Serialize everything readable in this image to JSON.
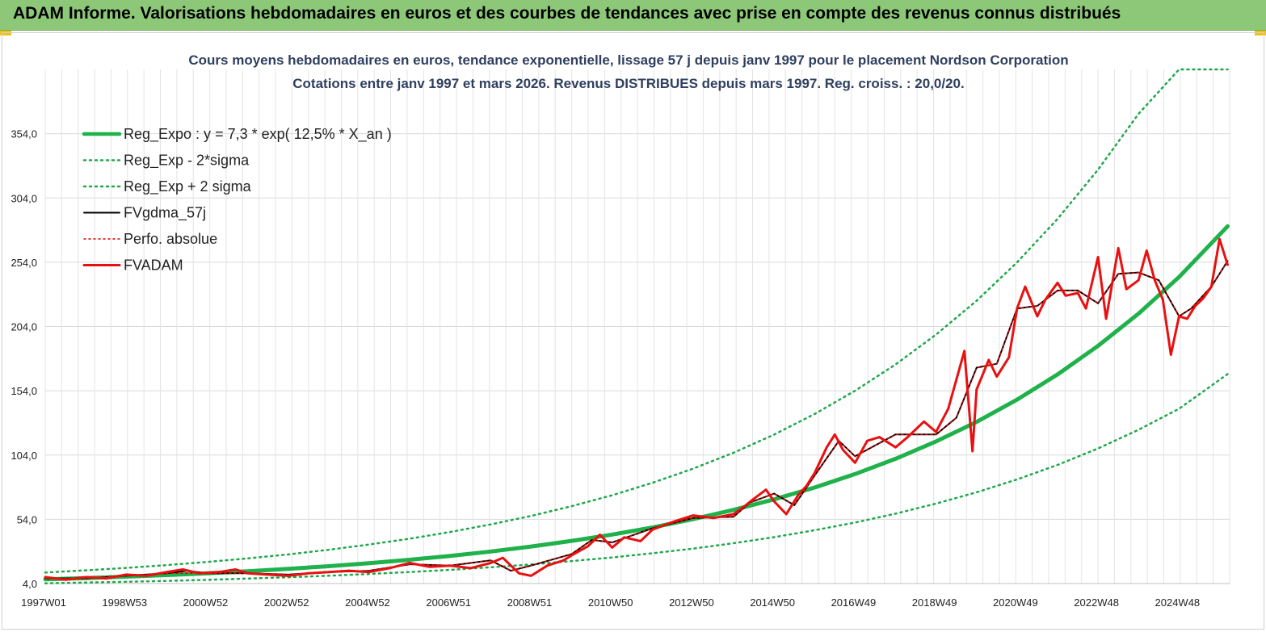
{
  "header": {
    "title": "ADAM Informe. Valorisations hebdomadaires en euros et des courbes de tendances avec prise en compte des revenus connus distribués"
  },
  "colors": {
    "banner": "#8cc878",
    "grid": "#d9d9d9",
    "reg_expo": "#1fb14a",
    "reg_band": "#1fa84a",
    "fvgdma": "#000000",
    "perfo": "#e00000",
    "fvadam": "#e81010"
  },
  "chart_data": {
    "type": "line",
    "title_line1": "Cours moyens hebdomadaires en euros, tendance exponentielle, lissage 57 j depuis janv 1997 pour le placement Nordson Corporation",
    "title_line2": "Cotations entre janv 1997 et mars 2026. Revenus DISTRIBUES depuis mars 1997. Reg. croiss. : 20,0/20.",
    "x_tick_labels": [
      "1997W01",
      "1998W53",
      "2000W52",
      "2002W52",
      "2004W52",
      "2006W51",
      "2008W51",
      "2010W50",
      "2012W50",
      "2014W50",
      "2016W49",
      "2018W49",
      "2020W49",
      "2022W48",
      "2024W48"
    ],
    "y_tick_labels": [
      "4,0",
      "54,0",
      "104,0",
      "154,0",
      "204,0",
      "254,0",
      "304,0",
      "354,0"
    ],
    "y_ticks": [
      4,
      54,
      104,
      154,
      204,
      254,
      304,
      354
    ],
    "ylim": [
      4,
      404
    ],
    "xlim": [
      1997.0,
      2026.25
    ],
    "grid": true,
    "legend_position": "top-left",
    "series": [
      {
        "name": "Reg_Expo : y = 7,3 * exp( 12,5% *  X_an )",
        "style": "solid-thick",
        "x": [
          1997,
          1998,
          1999,
          2000,
          2001,
          2002,
          2003,
          2004,
          2005,
          2006,
          2007,
          2008,
          2009,
          2010,
          2011,
          2012,
          2013,
          2014,
          2015,
          2016,
          2017,
          2018,
          2019,
          2020,
          2021,
          2022,
          2023,
          2024,
          2025,
          2026.2
        ],
        "values": [
          7.3,
          8.3,
          9.4,
          10.6,
          12.0,
          13.6,
          15.5,
          17.5,
          19.9,
          22.5,
          25.5,
          28.9,
          32.8,
          37.2,
          42.1,
          47.7,
          54.1,
          61.3,
          69.5,
          78.7,
          89.2,
          101.1,
          114.6,
          129.8,
          147.1,
          166.7,
          188.9,
          214.0,
          242.5,
          282.0
        ]
      },
      {
        "name": "Reg_Exp - 2*sigma",
        "style": "dotted",
        "x": [
          1997,
          1998,
          1999,
          2000,
          2001,
          2002,
          2003,
          2004,
          2005,
          2006,
          2007,
          2008,
          2009,
          2010,
          2011,
          2012,
          2013,
          2014,
          2015,
          2016,
          2017,
          2018,
          2019,
          2020,
          2021,
          2022,
          2023,
          2024,
          2025,
          2026.2
        ],
        "values": [
          4.2,
          4.8,
          5.4,
          6.1,
          6.9,
          7.9,
          8.9,
          10.1,
          11.5,
          13.0,
          14.7,
          16.7,
          18.9,
          21.5,
          24.3,
          27.6,
          31.2,
          35.4,
          40.1,
          45.5,
          51.5,
          58.4,
          66.2,
          75.0,
          85.0,
          96.3,
          109.1,
          123.6,
          140.0,
          167.0
        ]
      },
      {
        "name": "Reg_Exp + 2 sigma",
        "style": "dotted",
        "x": [
          1997,
          1998,
          1999,
          2000,
          2001,
          2002,
          2003,
          2004,
          2005,
          2006,
          2007,
          2008,
          2009,
          2010,
          2011,
          2012,
          2013,
          2014,
          2015,
          2016,
          2017,
          2018,
          2019,
          2020,
          2021,
          2022,
          2023,
          2024,
          2025,
          2026.2
        ],
        "values": [
          12.6,
          14.3,
          16.2,
          18.4,
          20.8,
          23.6,
          26.7,
          30.3,
          34.4,
          38.9,
          44.1,
          50.0,
          56.6,
          64.2,
          72.7,
          82.4,
          93.4,
          105.8,
          119.9,
          135.9,
          154.0,
          174.5,
          197.7,
          224.0,
          253.9,
          287.7,
          326.0,
          369.4,
          404,
          404
        ]
      },
      {
        "name": "FVgdma_57j",
        "style": "solid-thin",
        "x": [
          1997,
          1998,
          1999,
          2000,
          2000.5,
          2001,
          2002,
          2003,
          2004,
          2005,
          2006,
          2007,
          2008,
          2008.5,
          2009,
          2010,
          2010.5,
          2011,
          2012,
          2013,
          2014,
          2014.4,
          2015,
          2015.5,
          2016,
          2016.6,
          2017,
          2018,
          2019,
          2019.5,
          2020,
          2020.5,
          2021,
          2021.5,
          2022,
          2022.5,
          2023,
          2023.5,
          2024,
          2024.5,
          2025,
          2025.3,
          2025.8,
          2026.2
        ],
        "values": [
          8,
          8,
          10,
          12,
          14,
          12,
          12,
          11,
          13,
          14,
          19,
          18,
          22,
          14,
          18,
          27,
          38,
          36,
          47,
          55,
          56,
          67,
          74,
          65,
          88,
          115,
          103,
          120,
          120,
          133,
          172,
          175,
          218,
          220,
          232,
          232,
          222,
          245,
          246,
          240,
          212,
          218,
          235,
          255
        ]
      },
      {
        "name": "Perfo. absolue",
        "style": "dotted-red",
        "x": [
          1997,
          1998,
          1999,
          2000,
          2001,
          2002,
          2003,
          2004,
          2005,
          2006,
          2007,
          2008,
          2008.5,
          2009,
          2010,
          2010.5,
          2011,
          2012,
          2013,
          2014,
          2014.4,
          2015,
          2015.5,
          2016,
          2016.6,
          2017,
          2018,
          2019,
          2019.5,
          2020,
          2020.5,
          2021,
          2021.5,
          2022,
          2022.5,
          2023,
          2023.5,
          2024,
          2024.5,
          2025,
          2025.3,
          2025.8,
          2026.2
        ],
        "values": [
          8,
          8,
          10,
          12,
          12,
          12,
          11,
          13,
          14,
          19,
          18,
          22,
          14,
          18,
          27,
          38,
          36,
          47,
          55,
          56,
          67,
          74,
          65,
          88,
          115,
          103,
          120,
          120,
          133,
          172,
          175,
          218,
          220,
          232,
          232,
          222,
          245,
          246,
          240,
          212,
          218,
          235,
          255
        ]
      },
      {
        "name": "FVADAM",
        "style": "solid-red",
        "x": [
          1997,
          1997.5,
          1998,
          1998.5,
          1999,
          1999.5,
          2000,
          2000.4,
          2000.8,
          2001.3,
          2001.7,
          2002,
          2002.5,
          2003,
          2003.5,
          2004,
          2004.5,
          2005,
          2005.5,
          2006,
          2006.5,
          2007,
          2007.5,
          2008,
          2008.3,
          2008.7,
          2009,
          2009.4,
          2009.8,
          2010,
          2010.4,
          2010.7,
          2011,
          2011.3,
          2011.7,
          2012,
          2012.5,
          2013,
          2013.5,
          2014,
          2014.3,
          2014.5,
          2014.8,
          2015,
          2015.3,
          2015.6,
          2015.8,
          2016,
          2016.3,
          2016.5,
          2016.7,
          2017,
          2017.3,
          2017.6,
          2018,
          2018.3,
          2018.7,
          2019,
          2019.3,
          2019.7,
          2019.9,
          2020,
          2020.3,
          2020.5,
          2020.8,
          2021,
          2021.2,
          2021.5,
          2021.7,
          2022,
          2022.2,
          2022.5,
          2022.7,
          2023,
          2023.2,
          2023.5,
          2023.7,
          2024,
          2024.2,
          2024.4,
          2024.6,
          2024.8,
          2025,
          2025.2,
          2025.4,
          2025.6,
          2025.8,
          2026,
          2026.2
        ],
        "values": [
          9,
          7,
          9,
          8,
          11,
          10,
          13,
          15,
          12,
          13,
          15,
          12,
          11,
          10,
          12,
          13,
          14,
          13,
          16,
          20,
          17,
          18,
          16,
          20,
          24,
          12,
          10,
          18,
          22,
          26,
          33,
          42,
          32,
          40,
          37,
          46,
          52,
          57,
          55,
          58,
          65,
          70,
          77,
          68,
          58,
          73,
          80,
          90,
          110,
          120,
          108,
          98,
          115,
          118,
          110,
          118,
          130,
          122,
          140,
          185,
          107,
          155,
          178,
          165,
          180,
          218,
          235,
          212,
          225,
          238,
          228,
          230,
          218,
          258,
          210,
          265,
          233,
          240,
          263,
          240,
          225,
          182,
          212,
          210,
          220,
          226,
          235,
          272,
          252
        ]
      }
    ]
  }
}
